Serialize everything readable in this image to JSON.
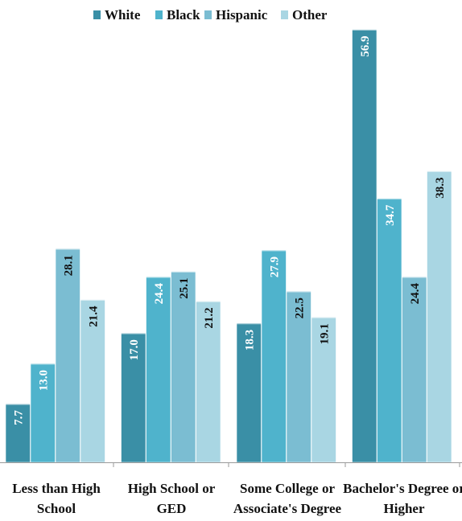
{
  "chart_data": {
    "type": "bar",
    "categories": [
      [
        "Less than High",
        "School"
      ],
      [
        "High School or",
        "GED"
      ],
      [
        "Some College or",
        "Associate's Degree"
      ],
      [
        "Bachelor's Degree or",
        "Higher"
      ]
    ],
    "series": [
      {
        "name": "White",
        "values": [
          7.7,
          17.0,
          18.3,
          56.9
        ],
        "labels": [
          "7.7",
          "17.0",
          "18.3",
          "56.9"
        ],
        "color": "#3a8fa6",
        "label_color": "#ffffff"
      },
      {
        "name": "Black",
        "values": [
          13.0,
          24.4,
          27.9,
          34.7
        ],
        "labels": [
          "13.0",
          "24.4",
          "27.9",
          "34.7"
        ],
        "color": "#4fb3cc",
        "label_color": "#ffffff"
      },
      {
        "name": "Hispanic",
        "values": [
          28.1,
          25.1,
          22.5,
          24.4
        ],
        "labels": [
          "28.1",
          "25.1",
          "22.5",
          "24.4"
        ],
        "color": "#7bbdd2",
        "label_color": "#111111"
      },
      {
        "name": "Other",
        "values": [
          21.4,
          21.2,
          19.1,
          38.3
        ],
        "labels": [
          "21.4",
          "21.2",
          "19.1",
          "38.3"
        ],
        "color": "#a9d6e3",
        "label_color": "#111111"
      }
    ],
    "ylim": [
      0,
      57.8
    ],
    "grid": false,
    "legend_position": "top-center"
  }
}
